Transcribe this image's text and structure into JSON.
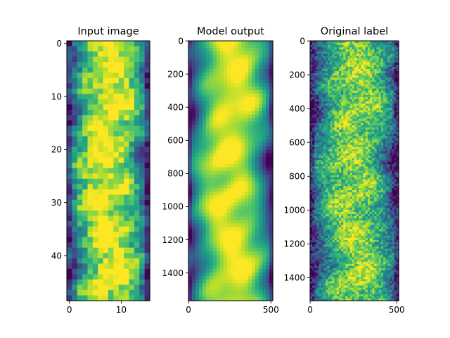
{
  "chart_data": [
    {
      "type": "heatmap",
      "title": "Input image",
      "xlabel": "",
      "ylabel": "",
      "xlim": [
        -0.5,
        15.5
      ],
      "ylim": [
        48.5,
        -0.5
      ],
      "x_ticks": [
        0,
        10
      ],
      "y_ticks": [
        0,
        10,
        20,
        30,
        40
      ],
      "colormap": "viridis",
      "style": "blocky",
      "grid_cols": 16,
      "grid_rows": 49
    },
    {
      "type": "heatmap",
      "title": "Model output",
      "xlabel": "",
      "ylabel": "",
      "xlim": [
        -0.5,
        511.5
      ],
      "ylim": [
        1567.5,
        -0.5
      ],
      "x_ticks": [
        0,
        500
      ],
      "y_ticks": [
        0,
        200,
        400,
        600,
        800,
        1000,
        1200,
        1400
      ],
      "colormap": "viridis",
      "style": "smooth"
    },
    {
      "type": "heatmap",
      "title": "Original label",
      "xlabel": "",
      "ylabel": "",
      "xlim": [
        -0.5,
        511.5
      ],
      "ylim": [
        1535.5,
        -0.5
      ],
      "x_ticks": [
        0,
        500
      ],
      "y_ticks": [
        0,
        200,
        400,
        600,
        800,
        1000,
        1200,
        1400
      ],
      "colormap": "viridis",
      "style": "turbulent"
    }
  ]
}
